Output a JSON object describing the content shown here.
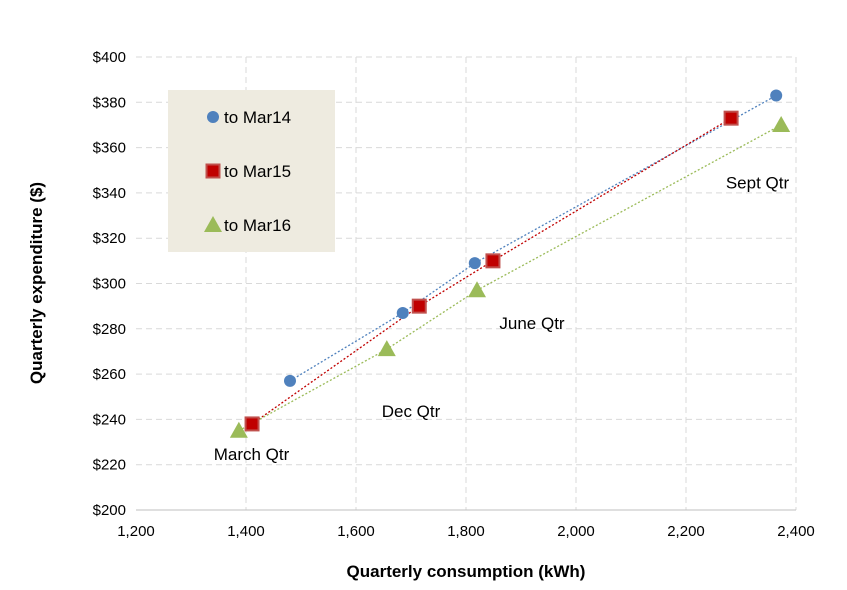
{
  "chart_data": {
    "type": "scatter",
    "xlabel": "Quarterly consumption (kWh)",
    "ylabel": "Quarterly expenditure ($)",
    "xlim": [
      1200,
      2400
    ],
    "ylim": [
      200,
      400
    ],
    "xticks": [
      "1,200",
      "1,400",
      "1,600",
      "1,800",
      "2,000",
      "2,200",
      "2,400"
    ],
    "yticks": [
      "$200",
      "$220",
      "$240",
      "$260",
      "$280",
      "$300",
      "$320",
      "$340",
      "$360",
      "$380",
      "$400"
    ],
    "grid": true,
    "legend_position": "top-left",
    "series": [
      {
        "name": "to Mar14",
        "color": "#4F81BD",
        "marker": "circle",
        "x": [
          1480,
          1685,
          1816,
          2364
        ],
        "y": [
          257,
          287,
          309,
          383
        ]
      },
      {
        "name": "to Mar15",
        "color": "#C00000",
        "marker": "square",
        "x": [
          1411,
          1715,
          1849,
          2282
        ],
        "y": [
          238,
          290,
          310,
          373
        ]
      },
      {
        "name": "to Mar16",
        "color": "#9BBB59",
        "marker": "triangle",
        "x": [
          1387,
          1656,
          1820,
          2373
        ],
        "y": [
          235,
          271,
          297,
          370
        ]
      }
    ],
    "annotations": [
      {
        "text": "March Qtr",
        "x": 1410,
        "y": 222
      },
      {
        "text": "Dec Qtr",
        "x": 1700,
        "y": 241
      },
      {
        "text": "June Qtr",
        "x": 1920,
        "y": 280
      },
      {
        "text": "Sept Qtr",
        "x": 2330,
        "y": 342
      }
    ]
  }
}
